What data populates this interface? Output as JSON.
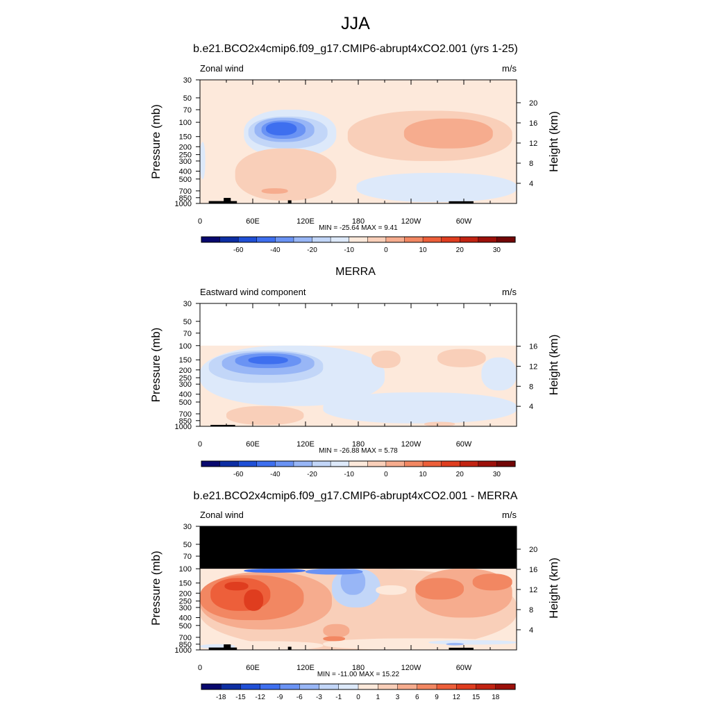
{
  "figure": {
    "title": "JJA",
    "subtitles": [
      "b.e21.BCO2x4cmip6.f09_g17.CMIP6-abrupt4xCO2.001 (yrs 1-25)",
      "MERRA",
      "b.e21.BCO2x4cmip6.f09_g17.CMIP6-abrupt4xCO2.001 - MERRA"
    ]
  },
  "colors": {
    "missing": "#000000",
    "frame": "#000000"
  },
  "chart_data": [
    {
      "type": "heatmap",
      "name": "model",
      "left_title": "Zonal wind",
      "units": "m/s",
      "ylabel": "Pressure (mb)",
      "ylabel_right": "Height (km)",
      "x_ticks": [
        "0",
        "60E",
        "120E",
        "180",
        "120W",
        "60W"
      ],
      "x_tick_lon": [
        0,
        60,
        120,
        180,
        240,
        300
      ],
      "xlim": [
        0,
        360
      ],
      "pressure_ticks": [
        30,
        50,
        70,
        100,
        150,
        200,
        250,
        300,
        400,
        500,
        700,
        850,
        1000
      ],
      "ylim_mb": [
        1000,
        30
      ],
      "height_ticks_km": [
        4,
        8,
        12,
        16,
        20
      ],
      "data_top_mb": 30,
      "stats": "MIN = -25.64  MAX =  9.41",
      "colorbar": {
        "labels": [
          "-60",
          "-40",
          "-20",
          "-10",
          "0",
          "10",
          "20",
          "30"
        ],
        "colors": [
          "#08086e",
          "#0d2ea3",
          "#1f4fd6",
          "#3e6fef",
          "#6a93f4",
          "#98b6f6",
          "#c2d6f8",
          "#dde9fa",
          "#fde9db",
          "#f9cfb9",
          "#f6ac8e",
          "#f28762",
          "#ed5f3a",
          "#df3d1f",
          "#c22312",
          "#9c100a",
          "#720606"
        ]
      },
      "features": [
        {
          "kind": "blob",
          "lon": [
            50,
            155
          ],
          "p": [
            70,
            270
          ],
          "color": "#dde9fa"
        },
        {
          "kind": "blob",
          "lon": [
            55,
            145
          ],
          "p": [
            85,
            210
          ],
          "color": "#c2d6f8"
        },
        {
          "kind": "blob",
          "lon": [
            62,
            130
          ],
          "p": [
            88,
            175
          ],
          "color": "#98b6f6"
        },
        {
          "kind": "blob",
          "lon": [
            70,
            120
          ],
          "p": [
            95,
            160
          ],
          "color": "#6a93f4"
        },
        {
          "kind": "blob",
          "lon": [
            75,
            110
          ],
          "p": [
            100,
            145
          ],
          "color": "#3e6fef"
        },
        {
          "kind": "blob",
          "lon": [
            0,
            6
          ],
          "p": [
            175,
            500
          ],
          "color": "#dde9fa"
        },
        {
          "kind": "blob",
          "lon": [
            178,
            360
          ],
          "p": [
            420,
            960
          ],
          "color": "#dde9fa"
        },
        {
          "kind": "blob",
          "lon": [
            40,
            155
          ],
          "p": [
            210,
            920
          ],
          "color": "#f9cfb9"
        },
        {
          "kind": "blob",
          "lon": [
            168,
            355
          ],
          "p": [
            72,
            300
          ],
          "color": "#f9cfb9"
        },
        {
          "kind": "blob",
          "lon": [
            232,
            333
          ],
          "p": [
            90,
            210
          ],
          "color": "#f6ac8e"
        },
        {
          "kind": "blob",
          "lon": [
            70,
            100
          ],
          "p": [
            650,
            760
          ],
          "color": "#f6ac8e"
        },
        {
          "kind": "blob",
          "lon": [
            10,
            42
          ],
          "p": [
            935,
            1000
          ],
          "color": "#000000"
        },
        {
          "kind": "blob",
          "lon": [
            27,
            35
          ],
          "p": [
            855,
            1000
          ],
          "color": "#000000"
        },
        {
          "kind": "blob",
          "lon": [
            100,
            104
          ],
          "p": [
            915,
            1000
          ],
          "color": "#000000"
        },
        {
          "kind": "blob",
          "lon": [
            283,
            311
          ],
          "p": [
            940,
            1000
          ],
          "color": "#000000"
        }
      ]
    },
    {
      "type": "heatmap",
      "name": "obs",
      "left_title": "Eastward wind component",
      "units": "m/s",
      "ylabel": "Pressure (mb)",
      "ylabel_right": "Height (km)",
      "x_ticks": [
        "0",
        "60E",
        "120E",
        "180",
        "120W",
        "60W"
      ],
      "x_tick_lon": [
        0,
        60,
        120,
        180,
        240,
        300
      ],
      "xlim": [
        0,
        360
      ],
      "pressure_ticks": [
        30,
        50,
        70,
        100,
        150,
        200,
        250,
        300,
        400,
        500,
        700,
        850,
        1000
      ],
      "ylim_mb": [
        1000,
        30
      ],
      "height_ticks_km": [
        4,
        8,
        12,
        16
      ],
      "data_top_mb": 100,
      "stats": "MIN = -26.88  MAX =  5.78",
      "colorbar": {
        "labels": [
          "-60",
          "-40",
          "-20",
          "-10",
          "0",
          "10",
          "20",
          "30"
        ],
        "colors": [
          "#08086e",
          "#0d2ea3",
          "#1f4fd6",
          "#3e6fef",
          "#6a93f4",
          "#98b6f6",
          "#c2d6f8",
          "#dde9fa",
          "#fde9db",
          "#f9cfb9",
          "#f6ac8e",
          "#f28762",
          "#ed5f3a",
          "#df3d1f",
          "#c22312",
          "#9c100a",
          "#720606"
        ]
      },
      "features": [
        {
          "kind": "blob",
          "lon": [
            0,
            210
          ],
          "p": [
            100,
            560
          ],
          "color": "#dde9fa"
        },
        {
          "kind": "blob",
          "lon": [
            140,
            360
          ],
          "p": [
            380,
            920
          ],
          "color": "#dde9fa"
        },
        {
          "kind": "blob",
          "lon": [
            320,
            360
          ],
          "p": [
            140,
            360
          ],
          "color": "#dde9fa"
        },
        {
          "kind": "blob",
          "lon": [
            10,
            140
          ],
          "p": [
            115,
            290
          ],
          "color": "#c2d6f8"
        },
        {
          "kind": "blob",
          "lon": [
            25,
            130
          ],
          "p": [
            120,
            230
          ],
          "color": "#98b6f6"
        },
        {
          "kind": "blob",
          "lon": [
            40,
            115
          ],
          "p": [
            125,
            190
          ],
          "color": "#6a93f4"
        },
        {
          "kind": "blob",
          "lon": [
            55,
            100
          ],
          "p": [
            135,
            170
          ],
          "color": "#3e6fef"
        },
        {
          "kind": "blob",
          "lon": [
            195,
            228
          ],
          "p": [
            115,
            190
          ],
          "color": "#f9cfb9"
        },
        {
          "kind": "blob",
          "lon": [
            270,
            325
          ],
          "p": [
            110,
            185
          ],
          "color": "#f9cfb9"
        },
        {
          "kind": "blob",
          "lon": [
            30,
            118
          ],
          "p": [
            560,
            960
          ],
          "color": "#f9cfb9"
        },
        {
          "kind": "blob",
          "lon": [
            255,
            290
          ],
          "p": [
            880,
            1000
          ],
          "color": "#f9cfb9"
        },
        {
          "kind": "blob",
          "lon": [
            12,
            40
          ],
          "p": [
            960,
            1000
          ],
          "color": "#000000"
        }
      ]
    },
    {
      "type": "heatmap",
      "name": "diff",
      "left_title": "Zonal wind",
      "units": "m/s",
      "ylabel": "Pressure (mb)",
      "ylabel_right": "Height (km)",
      "x_ticks": [
        "0",
        "60E",
        "120E",
        "180",
        "120W",
        "60W"
      ],
      "x_tick_lon": [
        0,
        60,
        120,
        180,
        240,
        300
      ],
      "xlim": [
        0,
        360
      ],
      "pressure_ticks": [
        30,
        50,
        70,
        100,
        150,
        200,
        250,
        300,
        400,
        500,
        700,
        850,
        1000
      ],
      "ylim_mb": [
        1000,
        30
      ],
      "height_ticks_km": [
        4,
        8,
        12,
        16,
        20
      ],
      "data_top_mb": 100,
      "stats": "MIN = -11.00  MAX =  15.22",
      "colorbar": {
        "labels": [
          "-18",
          "-15",
          "-12",
          "-9",
          "-6",
          "-3",
          "-1",
          "0",
          "1",
          "3",
          "6",
          "9",
          "12",
          "15",
          "18"
        ],
        "colors": [
          "#08086e",
          "#0d2ea3",
          "#1f4fd6",
          "#3e6fef",
          "#6a93f4",
          "#98b6f6",
          "#c2d6f8",
          "#dde9fa",
          "#fde9db",
          "#f9cfb9",
          "#f6ac8e",
          "#f28762",
          "#ed5f3a",
          "#df3d1f",
          "#c22312",
          "#9c100a"
        ]
      },
      "features": [
        {
          "kind": "blob",
          "lon": [
            0,
            360
          ],
          "p": [
            100,
            1000
          ],
          "color": "#f9cfb9"
        },
        {
          "kind": "blob",
          "lon": [
            0,
            150
          ],
          "p": [
            110,
            560
          ],
          "color": "#f6ac8e"
        },
        {
          "kind": "blob",
          "lon": [
            0,
            118
          ],
          "p": [
            120,
            430
          ],
          "color": "#f28762"
        },
        {
          "kind": "blob",
          "lon": [
            12,
            80
          ],
          "p": [
            130,
            330
          ],
          "color": "#ed5f3a"
        },
        {
          "kind": "blob",
          "lon": [
            50,
            72
          ],
          "p": [
            180,
            330
          ],
          "color": "#df3d1f"
        },
        {
          "kind": "blob",
          "lon": [
            28,
            55
          ],
          "p": [
            145,
            185
          ],
          "color": "#df3d1f"
        },
        {
          "kind": "blob",
          "lon": [
            150,
            205
          ],
          "p": [
            100,
            300
          ],
          "color": "#c2d6f8"
        },
        {
          "kind": "blob",
          "lon": [
            160,
            188
          ],
          "p": [
            100,
            210
          ],
          "color": "#98b6f6"
        },
        {
          "kind": "blob",
          "lon": [
            120,
            185
          ],
          "p": [
            100,
            118
          ],
          "color": "#6a93f4"
        },
        {
          "kind": "blob",
          "lon": [
            50,
            120
          ],
          "p": [
            100,
            112
          ],
          "color": "#3e6fef"
        },
        {
          "kind": "blob",
          "lon": [
            245,
            355
          ],
          "p": [
            100,
            400
          ],
          "color": "#f6ac8e"
        },
        {
          "kind": "blob",
          "lon": [
            245,
            300
          ],
          "p": [
            130,
            240
          ],
          "color": "#f28762"
        },
        {
          "kind": "blob",
          "lon": [
            310,
            355
          ],
          "p": [
            115,
            185
          ],
          "color": "#f28762"
        },
        {
          "kind": "blob",
          "lon": [
            200,
            235
          ],
          "p": [
            160,
            210
          ],
          "color": "#fde9db"
        },
        {
          "kind": "blob",
          "lon": [
            140,
            360
          ],
          "p": [
            720,
            1000
          ],
          "color": "#fde9db"
        },
        {
          "kind": "blob",
          "lon": [
            0,
            140
          ],
          "p": [
            780,
            1000
          ],
          "color": "#fde9db"
        },
        {
          "kind": "blob",
          "lon": [
            260,
            360
          ],
          "p": [
            760,
            860
          ],
          "color": "#dde9fa"
        },
        {
          "kind": "blob",
          "lon": [
            0,
            40
          ],
          "p": [
            850,
            960
          ],
          "color": "#dde9fa"
        },
        {
          "kind": "blob",
          "lon": [
            280,
            300
          ],
          "p": [
            820,
            880
          ],
          "color": "#98b6f6"
        },
        {
          "kind": "blob",
          "lon": [
            140,
            170
          ],
          "p": [
            480,
            700
          ],
          "color": "#f6ac8e"
        },
        {
          "kind": "blob",
          "lon": [
            140,
            165
          ],
          "p": [
            680,
            780
          ],
          "color": "#f28762"
        },
        {
          "kind": "blob",
          "lon": [
            10,
            42
          ],
          "p": [
            935,
            1000
          ],
          "color": "#000000"
        },
        {
          "kind": "blob",
          "lon": [
            27,
            35
          ],
          "p": [
            855,
            1000
          ],
          "color": "#000000"
        },
        {
          "kind": "blob",
          "lon": [
            100,
            104
          ],
          "p": [
            915,
            1000
          ],
          "color": "#000000"
        },
        {
          "kind": "blob",
          "lon": [
            283,
            311
          ],
          "p": [
            940,
            1000
          ],
          "color": "#000000"
        }
      ]
    }
  ]
}
